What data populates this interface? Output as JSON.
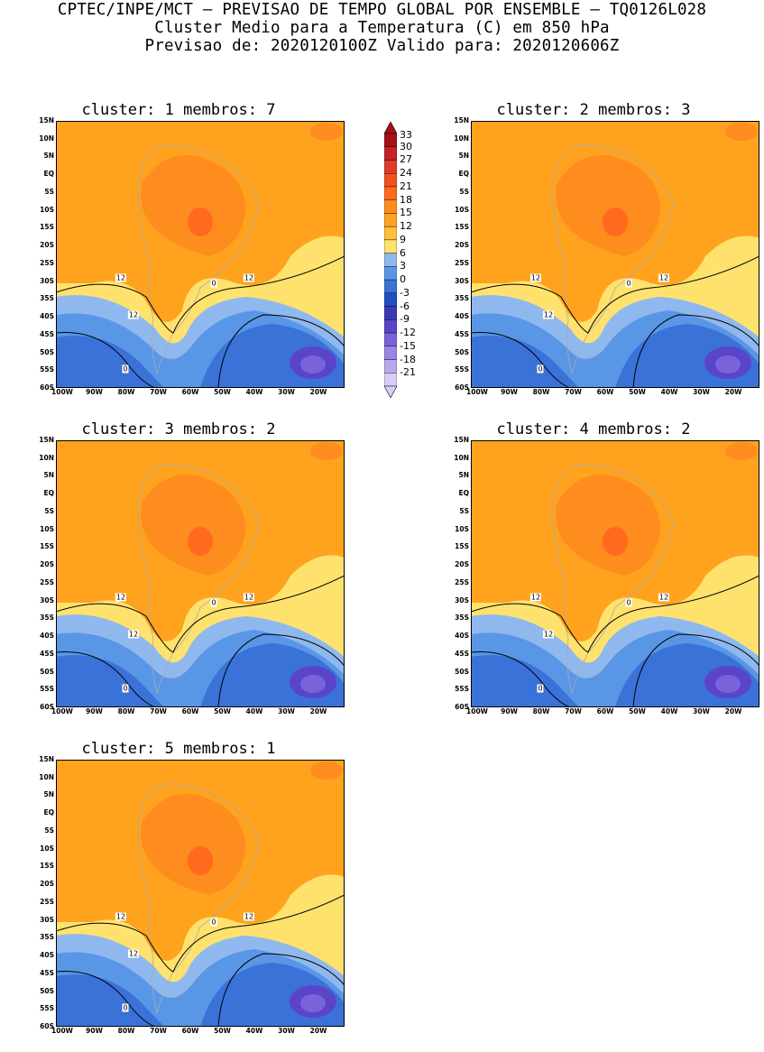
{
  "header": {
    "line1": "CPTEC/INPE/MCT – PREVISAO DE TEMPO GLOBAL POR ENSEMBLE – TQ0126L028",
    "line2": "Cluster Medio para a Temperatura (C) em 850 hPa",
    "line3": "Previsao de: 2020120100Z    Valido para: 2020120606Z"
  },
  "axes": {
    "lat_labels": [
      "15N",
      "10N",
      "5N",
      "EQ",
      "5S",
      "10S",
      "15S",
      "20S",
      "25S",
      "30S",
      "35S",
      "40S",
      "45S",
      "50S",
      "55S",
      "60S"
    ],
    "lon_labels": [
      "100W",
      "90W",
      "80W",
      "70W",
      "60W",
      "50W",
      "40W",
      "30W",
      "20W"
    ]
  },
  "colorbar": {
    "labels": [
      "33",
      "30",
      "27",
      "24",
      "21",
      "18",
      "15",
      "12",
      "9",
      "6",
      "3",
      "0",
      "-3",
      "-6",
      "-9",
      "-12",
      "-15",
      "-18",
      "-21"
    ],
    "colors": [
      "#a50f15",
      "#c62124",
      "#e03b2a",
      "#f0521e",
      "#ff6a1e",
      "#ff8c1e",
      "#ffa31e",
      "#ffbf3c",
      "#ffe26e",
      "#8fb8ee",
      "#5a96e6",
      "#3a72d8",
      "#1e50c4",
      "#3a3ab4",
      "#5a45c8",
      "#7a63d8",
      "#9a86e4",
      "#b8a8ee",
      "#d8cdf6"
    ]
  },
  "panels": [
    {
      "title": "cluster: 1   membros: 7",
      "contour_labels": [
        "12",
        "12",
        "12",
        "0",
        "0"
      ]
    },
    {
      "title": "cluster: 2   membros: 3",
      "contour_labels": [
        "12",
        "12",
        "12",
        "0",
        "0"
      ]
    },
    {
      "title": "cluster: 3   membros: 2",
      "contour_labels": [
        "12",
        "12",
        "12",
        "0",
        "0"
      ]
    },
    {
      "title": "cluster: 4   membros: 2",
      "contour_labels": [
        "12",
        "12",
        "12",
        "0",
        "0"
      ]
    },
    {
      "title": "cluster: 5   membros: 1",
      "contour_labels": [
        "12",
        "12",
        "12",
        "0",
        "0"
      ]
    }
  ]
}
